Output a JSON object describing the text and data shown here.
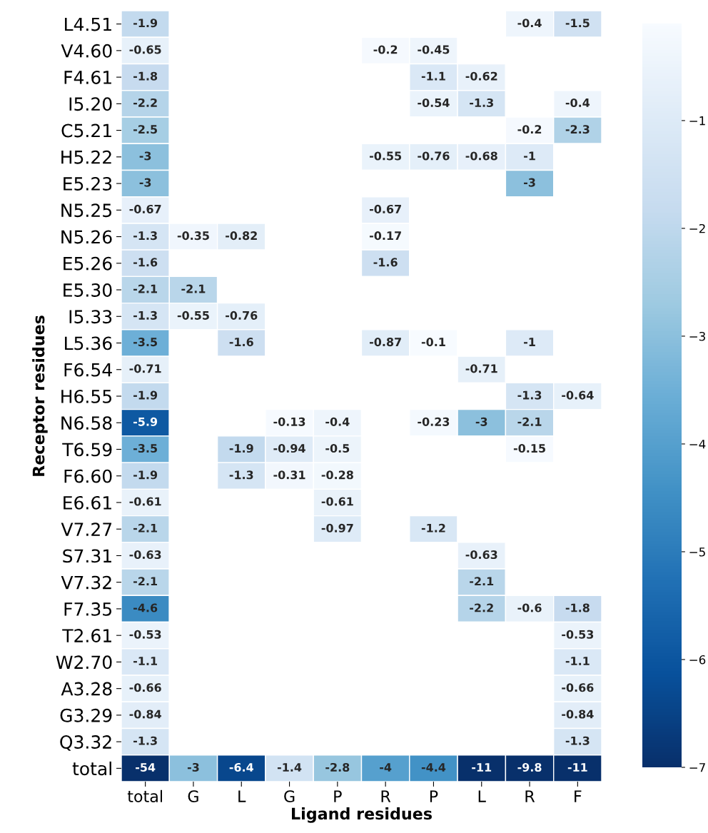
{
  "chart_data": {
    "type": "heatmap",
    "xlabel": "Ligand residues",
    "ylabel": "Receptor residues",
    "categories": [
      "total",
      "G",
      "L",
      "G",
      "P",
      "R",
      "P",
      "L",
      "R",
      "F"
    ],
    "y_categories": [
      "L4.51",
      "V4.60",
      "F4.61",
      "I5.20",
      "C5.21",
      "H5.22",
      "E5.23",
      "N5.25",
      "N5.26",
      "E5.26",
      "E5.30",
      "I5.33",
      "L5.36",
      "F6.54",
      "H6.55",
      "N6.58",
      "T6.59",
      "F6.60",
      "E6.61",
      "V7.27",
      "S7.31",
      "V7.32",
      "F7.35",
      "T2.61",
      "W2.70",
      "A3.28",
      "G3.29",
      "Q3.32",
      "total"
    ],
    "cells": [
      [
        -1.9,
        null,
        null,
        null,
        null,
        null,
        null,
        null,
        -0.4,
        -1.5
      ],
      [
        -0.65,
        null,
        null,
        null,
        null,
        -0.2,
        -0.45,
        null,
        null,
        null
      ],
      [
        -1.8,
        null,
        null,
        null,
        null,
        null,
        -1.1,
        -0.62,
        null,
        null
      ],
      [
        -2.2,
        null,
        null,
        null,
        null,
        null,
        -0.54,
        -1.3,
        null,
        -0.4
      ],
      [
        -2.5,
        null,
        null,
        null,
        null,
        null,
        null,
        null,
        -0.2,
        -2.3
      ],
      [
        -3,
        null,
        null,
        null,
        null,
        -0.55,
        -0.76,
        -0.68,
        -1,
        null
      ],
      [
        -3,
        null,
        null,
        null,
        null,
        null,
        null,
        null,
        -3,
        null
      ],
      [
        -0.67,
        null,
        null,
        null,
        null,
        -0.67,
        null,
        null,
        null,
        null
      ],
      [
        -1.3,
        -0.35,
        -0.82,
        null,
        null,
        -0.17,
        null,
        null,
        null,
        null
      ],
      [
        -1.6,
        null,
        null,
        null,
        null,
        -1.6,
        null,
        null,
        null,
        null
      ],
      [
        -2.1,
        -2.1,
        null,
        null,
        null,
        null,
        null,
        null,
        null,
        null
      ],
      [
        -1.3,
        -0.55,
        -0.76,
        null,
        null,
        null,
        null,
        null,
        null,
        null
      ],
      [
        -3.5,
        null,
        -1.6,
        null,
        null,
        -0.87,
        -0.1,
        null,
        -1,
        null
      ],
      [
        -0.71,
        null,
        null,
        null,
        null,
        null,
        null,
        -0.71,
        null,
        null
      ],
      [
        -1.9,
        null,
        null,
        null,
        null,
        null,
        null,
        null,
        -1.3,
        -0.64
      ],
      [
        -5.9,
        null,
        null,
        -0.13,
        -0.4,
        null,
        -0.23,
        -3,
        -2.1,
        null
      ],
      [
        -3.5,
        null,
        -1.9,
        -0.94,
        -0.5,
        null,
        null,
        null,
        -0.15,
        null
      ],
      [
        -1.9,
        null,
        -1.3,
        -0.31,
        -0.28,
        null,
        null,
        null,
        null,
        null
      ],
      [
        -0.61,
        null,
        null,
        null,
        -0.61,
        null,
        null,
        null,
        null,
        null
      ],
      [
        -2.1,
        null,
        null,
        null,
        -0.97,
        null,
        -1.2,
        null,
        null,
        null
      ],
      [
        -0.63,
        null,
        null,
        null,
        null,
        null,
        null,
        -0.63,
        null,
        null
      ],
      [
        -2.1,
        null,
        null,
        null,
        null,
        null,
        null,
        -2.1,
        null,
        null
      ],
      [
        -4.6,
        null,
        null,
        null,
        null,
        null,
        null,
        -2.2,
        -0.6,
        -1.8
      ],
      [
        -0.53,
        null,
        null,
        null,
        null,
        null,
        null,
        null,
        null,
        -0.53
      ],
      [
        -1.1,
        null,
        null,
        null,
        null,
        null,
        null,
        null,
        null,
        -1.1
      ],
      [
        -0.66,
        null,
        null,
        null,
        null,
        null,
        null,
        null,
        null,
        -0.66
      ],
      [
        -0.84,
        null,
        null,
        null,
        null,
        null,
        null,
        null,
        null,
        -0.84
      ],
      [
        -1.3,
        null,
        null,
        null,
        null,
        null,
        null,
        null,
        null,
        -1.3
      ],
      [
        -54,
        -3,
        -6.4,
        -1.4,
        -2.8,
        -4,
        -4.4,
        -11,
        -9.8,
        -11
      ]
    ],
    "clim": [
      -7,
      -0.1
    ],
    "cticks": [
      -7,
      -6,
      -5,
      -4,
      -3,
      -2,
      -1
    ],
    "data_labels": true
  }
}
